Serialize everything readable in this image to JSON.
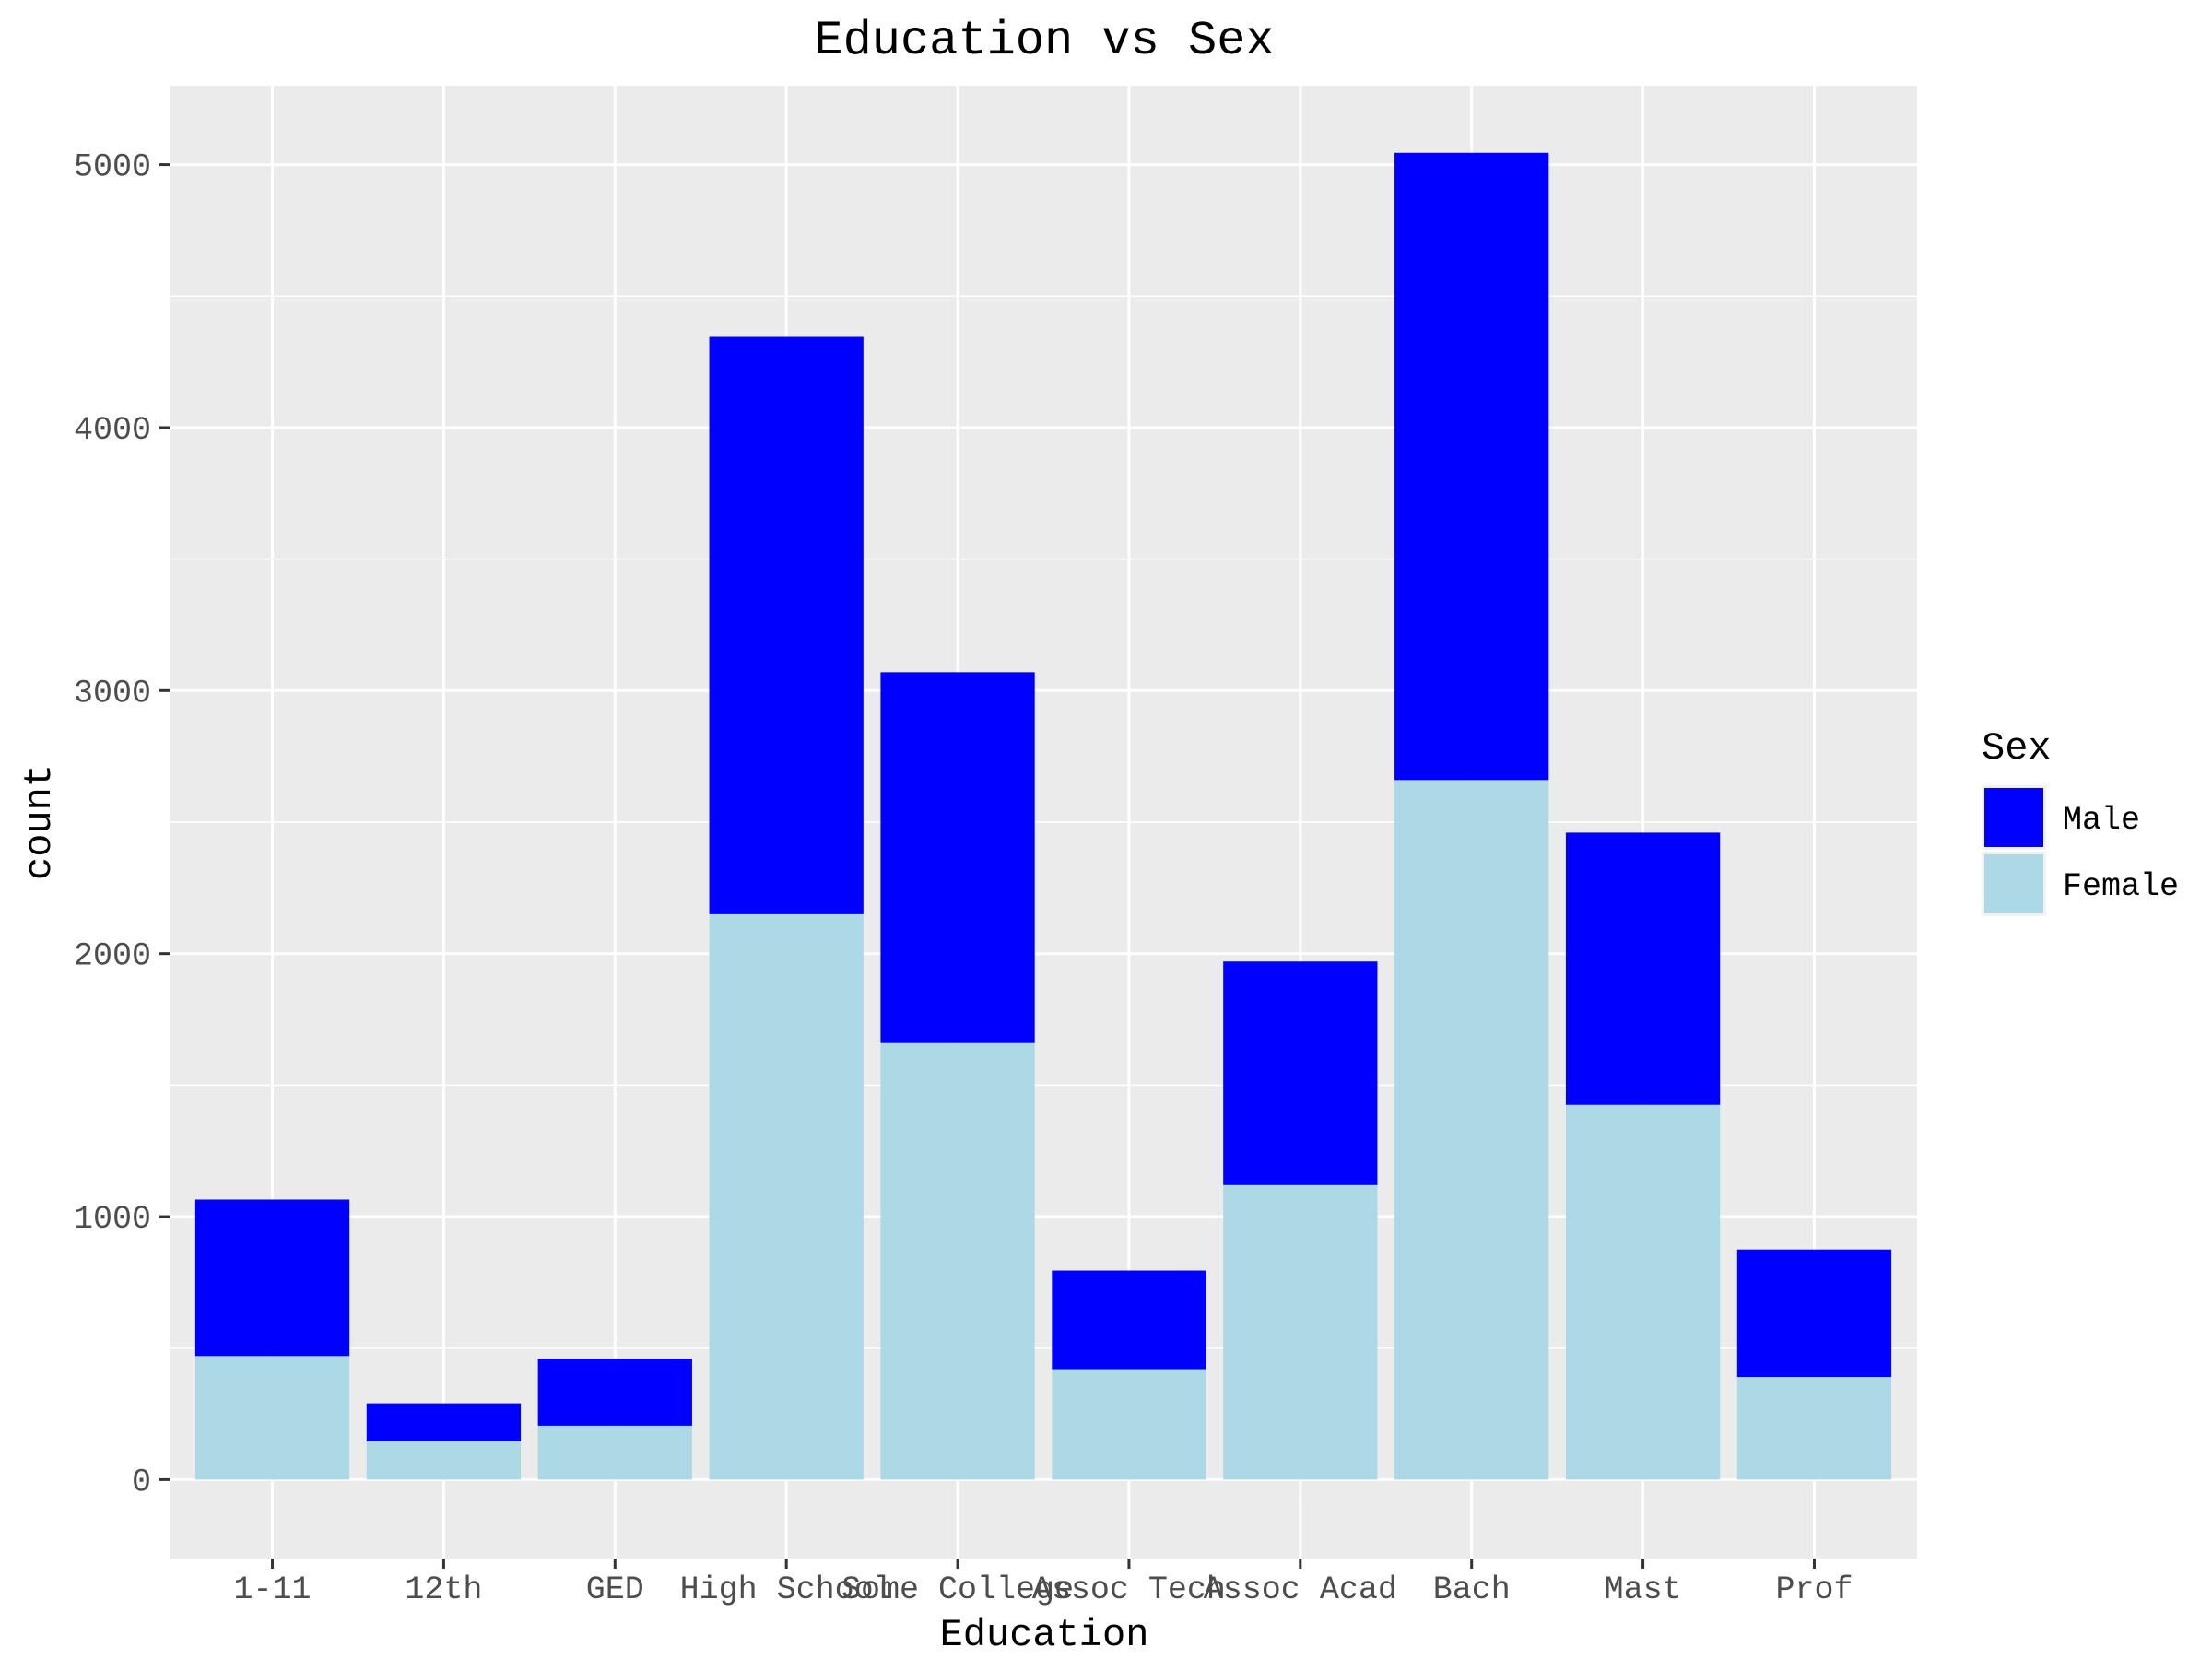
{
  "chart_data": {
    "type": "bar",
    "stacked": true,
    "title": "Education vs Sex",
    "xlabel": "Education",
    "ylabel": "count",
    "ylim": [
      -300,
      5300
    ],
    "yticks": [
      0,
      1000,
      2000,
      3000,
      4000,
      5000
    ],
    "grid": true,
    "legend_position": "right",
    "legend_title": "Sex",
    "categories": [
      "1-11",
      "12th",
      "GED",
      "High School",
      "Some College",
      "Assoc Tech",
      "Assoc Acad",
      "Bach",
      "Mast",
      "Prof"
    ],
    "series": [
      {
        "name": "Female",
        "color": "#add8e6",
        "values": [
          470,
          145,
          205,
          2150,
          1660,
          420,
          1120,
          2660,
          1425,
          390
        ]
      },
      {
        "name": "Male",
        "color": "#0000ff",
        "values": [
          595,
          145,
          255,
          2195,
          1410,
          375,
          850,
          2385,
          1035,
          485
        ]
      }
    ],
    "legend_items": [
      {
        "name": "Male",
        "color": "#0000ff"
      },
      {
        "name": "Female",
        "color": "#add8e6"
      }
    ],
    "panel_color": "#ebebeb",
    "grid_color": "#ffffff"
  }
}
